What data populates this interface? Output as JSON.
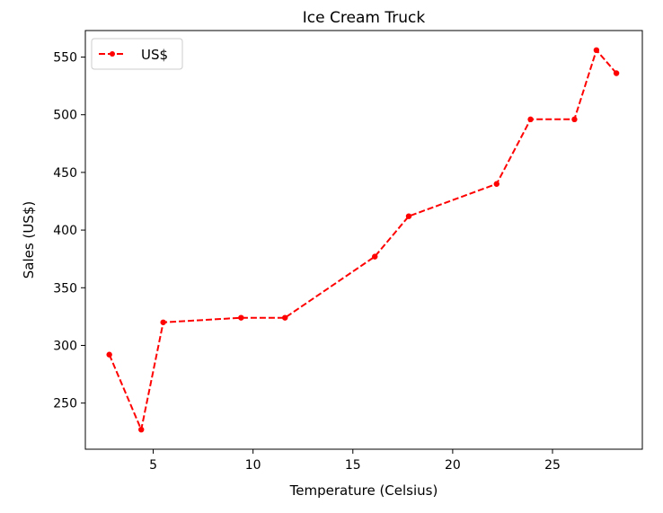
{
  "chart_data": {
    "type": "line",
    "title": "Ice Cream Truck",
    "xlabel": "Temperature (Celsius)",
    "ylabel": "Sales (US$)",
    "xlim": [
      1.6,
      29.5
    ],
    "ylim": [
      210,
      573
    ],
    "xticks": [
      5,
      10,
      15,
      20,
      25
    ],
    "yticks": [
      250,
      300,
      350,
      400,
      450,
      500,
      550
    ],
    "grid": false,
    "legend": {
      "position": "top-left",
      "entries": [
        "US$"
      ]
    },
    "series": [
      {
        "name": "US$",
        "color": "#ff0000",
        "line_style": "dashed",
        "marker": "circle",
        "x": [
          2.8,
          4.4,
          5.5,
          9.4,
          11.6,
          16.1,
          17.8,
          22.2,
          23.9,
          26.1,
          27.2,
          28.2
        ],
        "y": [
          292,
          227,
          320,
          324,
          324,
          377,
          412,
          440,
          496,
          496,
          556,
          536
        ]
      }
    ]
  }
}
